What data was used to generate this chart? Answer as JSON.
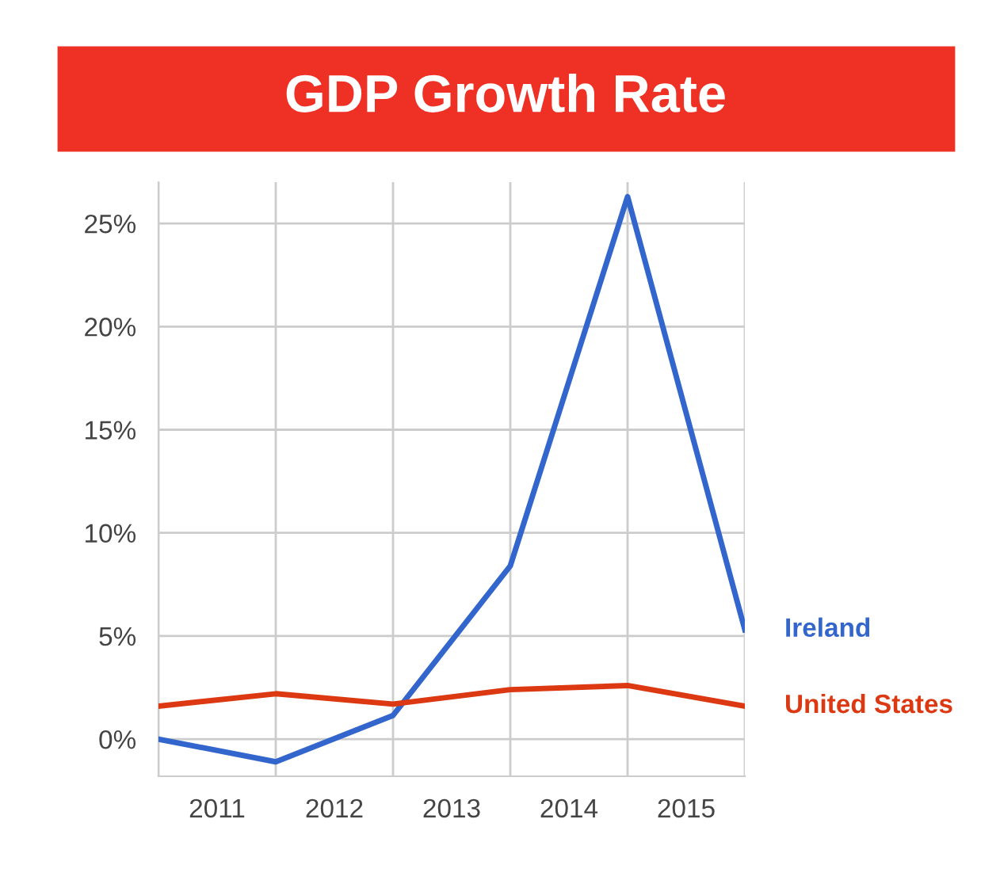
{
  "chart_data": {
    "type": "line",
    "title": "GDP Growth Rate",
    "x": [
      2010,
      2011,
      2012,
      2013,
      2014,
      2015
    ],
    "series": [
      {
        "name": "Ireland",
        "color": "#3366cc",
        "values": [
          0.0,
          -1.1,
          1.15,
          8.4,
          26.3,
          5.3
        ]
      },
      {
        "name": "United States",
        "color": "#dc3912",
        "values": [
          1.6,
          2.2,
          1.7,
          2.4,
          2.6,
          1.6
        ]
      }
    ],
    "xlim": [
      2010,
      2015
    ],
    "xticks": [
      {
        "value": 2010,
        "label": null
      },
      {
        "value": 2010.5,
        "label": "2011"
      },
      {
        "value": 2011,
        "label": null
      },
      {
        "value": 2011.5,
        "label": "2012"
      },
      {
        "value": 2012,
        "label": null
      },
      {
        "value": 2012.5,
        "label": "2013"
      },
      {
        "value": 2013,
        "label": null
      },
      {
        "value": 2013.5,
        "label": "2014"
      },
      {
        "value": 2014,
        "label": null
      },
      {
        "value": 2014.5,
        "label": "2015"
      },
      {
        "value": 2015,
        "label": null
      }
    ],
    "ylim": [
      -1.8,
      27
    ],
    "yticks": [
      {
        "value": 0,
        "label": "0%"
      },
      {
        "value": 5,
        "label": "5%"
      },
      {
        "value": 10,
        "label": "10%"
      },
      {
        "value": 15,
        "label": "15%"
      },
      {
        "value": 20,
        "label": "20%"
      },
      {
        "value": 25,
        "label": "25%"
      }
    ],
    "grid": true,
    "legend": false,
    "marker": "none",
    "line_style": "solid"
  }
}
